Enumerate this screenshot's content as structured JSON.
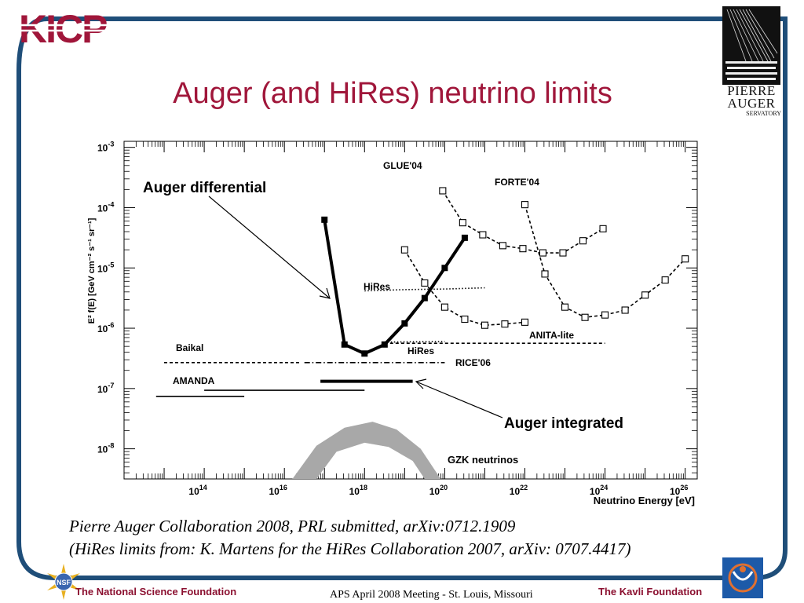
{
  "slide": {
    "title": "Auger (and HiRes) neutrino limits",
    "caption_line1": "Pierre Auger Collaboration 2008, PRL submitted, arXiv:0712.1909",
    "caption_line2": "(HiRes limits from: K. Martens for the HiRes Collaboration 2007, arXiv: 0707.4417)",
    "logo_kicp": "KICP",
    "logo_pao_line1": "PIERRE",
    "logo_pao_line2": "AUGER",
    "logo_pao_line3": "SERVATORY",
    "footer_left": "The National Science Foundation",
    "footer_center": "APS April 2008 Meeting - St. Louis, Missouri",
    "footer_right": "The Kavli Foundation",
    "frame_color": "#1f4e79",
    "title_color": "#a0163a"
  },
  "chart_data": {
    "type": "line",
    "log_x": true,
    "log_y": true,
    "xlim_log10": [
      12.0,
      26.3
    ],
    "ylim_log10": [
      -8.5,
      -2.9
    ],
    "xlabel": "Neutrino Energy [eV]",
    "ylabel": "E² f(E) [GeV cm⁻² s⁻¹ sr⁻¹]",
    "x_ticks": [
      {
        "exp": 14,
        "base": "10",
        "sup": "14"
      },
      {
        "exp": 16,
        "base": "10",
        "sup": "16"
      },
      {
        "exp": 18,
        "base": "10",
        "sup": "18"
      },
      {
        "exp": 20,
        "base": "10",
        "sup": "20"
      },
      {
        "exp": 22,
        "base": "10",
        "sup": "22"
      },
      {
        "exp": 24,
        "base": "10",
        "sup": "24"
      },
      {
        "exp": 26,
        "base": "10",
        "sup": "26"
      }
    ],
    "y_ticks": [
      {
        "exp": -3,
        "base": "10",
        "sup": "-3"
      },
      {
        "exp": -4,
        "base": "10",
        "sup": "-4"
      },
      {
        "exp": -5,
        "base": "10",
        "sup": "-5"
      },
      {
        "exp": -6,
        "base": "10",
        "sup": "-6"
      },
      {
        "exp": -7,
        "base": "10",
        "sup": "-7"
      },
      {
        "exp": -8,
        "base": "10",
        "sup": "-8"
      }
    ],
    "annotations": {
      "auger_differential": "Auger differential",
      "auger_integrated": "Auger integrated",
      "glue": "GLUE'04",
      "forte": "FORTE'04",
      "hires_top": "HiRes",
      "hires_bottom": "HiRes",
      "anita": "ANITA-lite",
      "baikal": "Baikal",
      "rice": "RICE'06",
      "amanda": "AMANDA",
      "gzk": "GZK neutrinos"
    },
    "series": [
      {
        "key": "auger_differential",
        "style": "thick-solid-filled-squares",
        "points": [
          [
            17.0,
            -4.2
          ],
          [
            17.5,
            -6.27
          ],
          [
            18.0,
            -6.42
          ],
          [
            18.5,
            -6.27
          ],
          [
            19.0,
            -5.92
          ],
          [
            19.5,
            -5.5
          ],
          [
            20.0,
            -5.0
          ],
          [
            20.5,
            -4.5
          ]
        ]
      },
      {
        "key": "glue",
        "style": "dashed-open-squares",
        "points": [
          [
            19.95,
            -3.72
          ],
          [
            20.45,
            -4.25
          ],
          [
            20.95,
            -4.45
          ],
          [
            21.45,
            -4.63
          ],
          [
            21.95,
            -4.68
          ],
          [
            22.45,
            -4.75
          ],
          [
            22.95,
            -4.75
          ],
          [
            23.45,
            -4.55
          ],
          [
            23.95,
            -4.35
          ]
        ]
      },
      {
        "key": "forte",
        "style": "dashed-open-squares",
        "points": [
          [
            22.0,
            -3.95
          ],
          [
            22.5,
            -5.1
          ],
          [
            23.0,
            -5.65
          ],
          [
            23.5,
            -5.82
          ],
          [
            24.0,
            -5.78
          ],
          [
            24.5,
            -5.7
          ],
          [
            25.0,
            -5.45
          ],
          [
            25.5,
            -5.2
          ],
          [
            26.0,
            -4.85
          ]
        ]
      },
      {
        "key": "anita",
        "style": "dashed-open-squares",
        "points": [
          [
            19.0,
            -4.7
          ],
          [
            19.5,
            -5.25
          ],
          [
            20.0,
            -5.65
          ],
          [
            20.5,
            -5.85
          ],
          [
            21.0,
            -5.95
          ],
          [
            21.5,
            -5.93
          ],
          [
            22.0,
            -5.9
          ]
        ]
      },
      {
        "key": "hires_upper",
        "style": "dotted",
        "points": [
          [
            18.0,
            -5.38
          ],
          [
            19.0,
            -5.36
          ],
          [
            20.0,
            -5.35
          ],
          [
            21.0,
            -5.33
          ]
        ]
      },
      {
        "key": "hires_lower",
        "style": "dotted",
        "points": [
          [
            18.5,
            -6.23
          ],
          [
            20.0,
            -6.22
          ]
        ]
      },
      {
        "key": "anita_extension",
        "style": "dashed",
        "points": [
          [
            18.5,
            -6.25
          ],
          [
            24.0,
            -6.25
          ]
        ]
      },
      {
        "key": "baikal",
        "style": "dashed",
        "points": [
          [
            13.0,
            -6.57
          ],
          [
            16.4,
            -6.57
          ]
        ]
      },
      {
        "key": "rice",
        "style": "dash-dot",
        "points": [
          [
            16.5,
            -6.57
          ],
          [
            20.0,
            -6.57
          ]
        ]
      },
      {
        "key": "amanda_1",
        "style": "solid",
        "points": [
          [
            14.0,
            -7.03
          ],
          [
            18.0,
            -7.03
          ]
        ]
      },
      {
        "key": "amanda_2",
        "style": "solid",
        "points": [
          [
            12.8,
            -7.13
          ],
          [
            15.0,
            -7.13
          ]
        ]
      },
      {
        "key": "auger_integrated",
        "style": "thick-solid",
        "points": [
          [
            16.9,
            -6.88
          ],
          [
            19.2,
            -6.88
          ]
        ]
      }
    ],
    "gzk_band": {
      "upper": [
        [
          16.2,
          -8.5
        ],
        [
          16.8,
          -7.95
        ],
        [
          17.5,
          -7.65
        ],
        [
          18.2,
          -7.55
        ],
        [
          18.8,
          -7.68
        ],
        [
          19.4,
          -8.0
        ],
        [
          19.9,
          -8.5
        ]
      ],
      "lower": [
        [
          19.5,
          -8.5
        ],
        [
          19.2,
          -8.2
        ],
        [
          18.6,
          -7.97
        ],
        [
          18.0,
          -7.9
        ],
        [
          17.3,
          -8.05
        ],
        [
          16.8,
          -8.5
        ]
      ]
    }
  }
}
